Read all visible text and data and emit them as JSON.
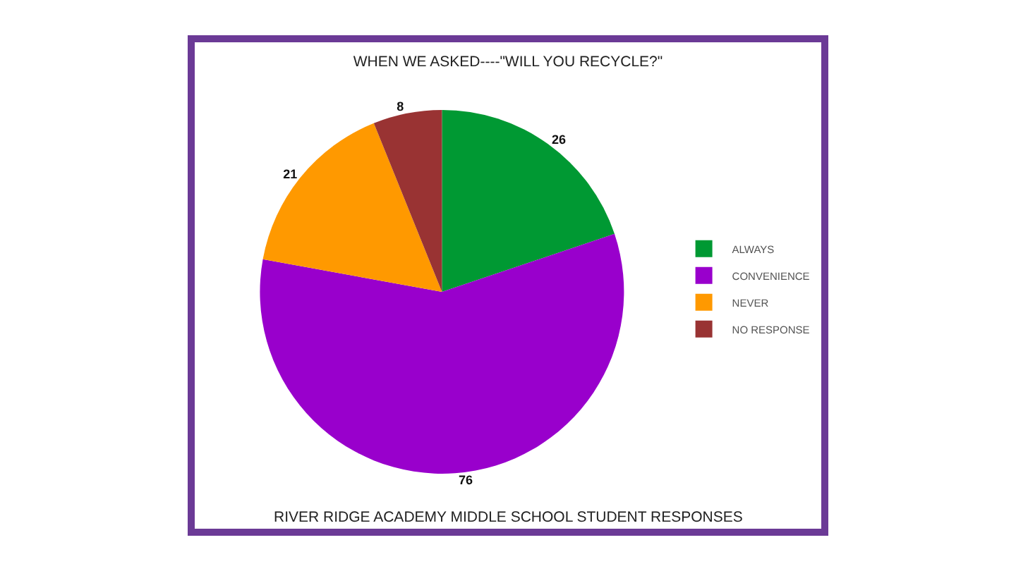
{
  "chart_data": {
    "type": "pie",
    "title": "WHEN WE ASKED----\"WILL YOU RECYCLE?\"",
    "categories": [
      "ALWAYS",
      "CONVENIENCE",
      "NEVER",
      "NO RESPONSE"
    ],
    "values": [
      26,
      76,
      21,
      8
    ],
    "colors": [
      "#009933",
      "#9900cc",
      "#ff9900",
      "#993333"
    ],
    "data_labels": true,
    "legend": "right",
    "annotations": [
      "RIVER RIDGE ACADEMY MIDDLE SCHOOL STUDENT RESPONSES"
    ]
  }
}
